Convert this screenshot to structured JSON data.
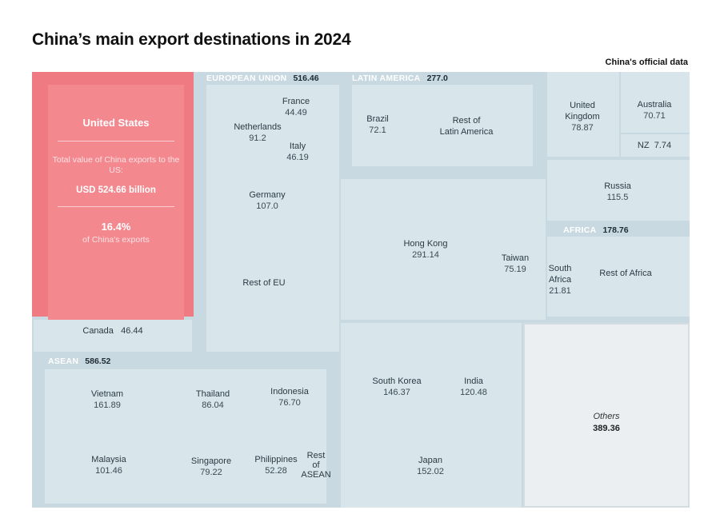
{
  "title": "China’s main export destinations in 2024",
  "source_note": "China's official data",
  "colors": {
    "us_fill": "#f07a82",
    "cell_fill": "#d8e5eb",
    "region_fill": "#c9d9e1",
    "others_fill": "#eceff1"
  },
  "chart_data": {
    "type": "treemap",
    "title": "China’s main export destinations in 2024",
    "unit": "USD billion",
    "highlight": {
      "name": "United States",
      "value": 524.66,
      "description": "Total value of China exports to the US:",
      "value_text": "USD 524.66 billion",
      "share": "16.4%",
      "share_label": "of China's exports"
    },
    "regions": {
      "eu": {
        "name": "EUROPEAN UNION",
        "total": "516.46",
        "items": {
          "netherlands": {
            "name": "Netherlands",
            "value": "91.2"
          },
          "france": {
            "name": "France",
            "value": "44.49"
          },
          "italy": {
            "name": "Italy",
            "value": "46.19"
          },
          "germany": {
            "name": "Germany",
            "value": "107.0"
          },
          "rest_eu": {
            "name": "Rest of EU",
            "value": ""
          }
        }
      },
      "latam": {
        "name": "LATIN AMERICA",
        "total": "277.0",
        "items": {
          "brazil": {
            "name": "Brazil",
            "value": "72.1"
          },
          "rest_latam": {
            "name": "Rest of\nLatin America",
            "value": ""
          }
        }
      },
      "asean": {
        "name": "ASEAN",
        "total": "586.52",
        "items": {
          "vietnam": {
            "name": "Vietnam",
            "value": "161.89"
          },
          "thailand": {
            "name": "Thailand",
            "value": "86.04"
          },
          "indonesia": {
            "name": "Indonesia",
            "value": "76.70"
          },
          "malaysia": {
            "name": "Malaysia",
            "value": "101.46"
          },
          "singapore": {
            "name": "Singapore",
            "value": "79.22"
          },
          "philippines": {
            "name": "Philippines",
            "value": "52.28"
          },
          "rest_asean": {
            "name": "Rest\nof\nASEAN",
            "value": ""
          }
        }
      },
      "africa": {
        "name": "AFRICA",
        "total": "178.76",
        "items": {
          "south_africa": {
            "name": "South\nAfrica",
            "value": "21.81"
          },
          "rest_africa": {
            "name": "Rest of Africa",
            "value": ""
          }
        }
      }
    },
    "countries": {
      "canada": {
        "name": "Canada",
        "value": "46.44"
      },
      "uk": {
        "name": "United\nKingdom",
        "value": "78.87"
      },
      "australia": {
        "name": "Australia",
        "value": "70.71"
      },
      "nz": {
        "name": "NZ",
        "value": "7.74"
      },
      "russia": {
        "name": "Russia",
        "value": "115.5"
      },
      "hong_kong": {
        "name": "Hong Kong",
        "value": "291.14"
      },
      "taiwan": {
        "name": "Taiwan",
        "value": "75.19"
      },
      "south_korea": {
        "name": "South Korea",
        "value": "146.37"
      },
      "india": {
        "name": "India",
        "value": "120.48"
      },
      "japan": {
        "name": "Japan",
        "value": "152.02"
      },
      "others": {
        "name": "Others",
        "value": "389.36"
      }
    }
  }
}
